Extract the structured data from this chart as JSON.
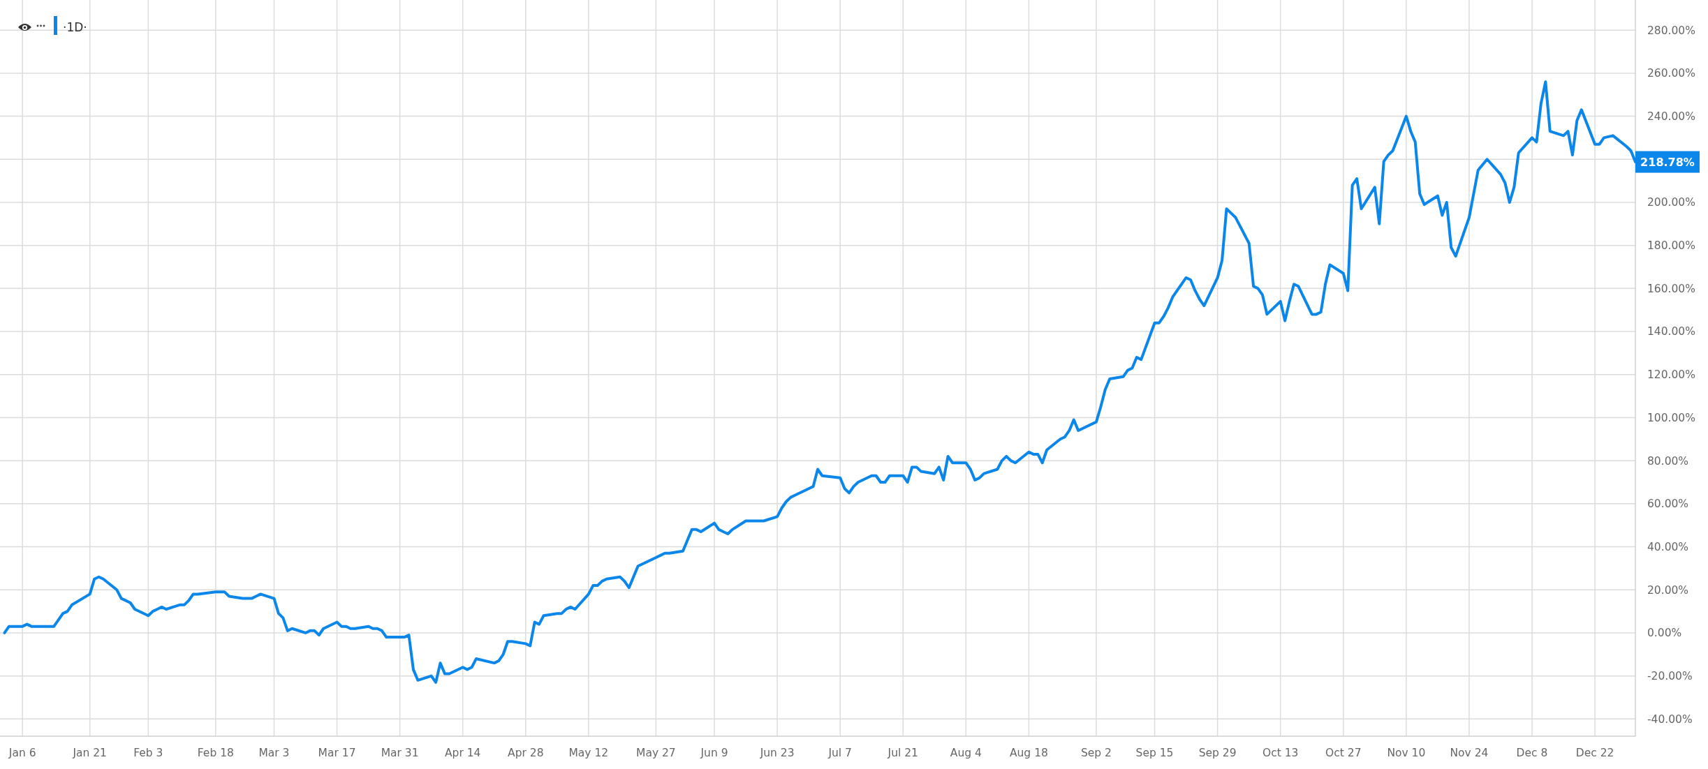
{
  "chart_data": {
    "type": "line",
    "color": "#0b86eb",
    "grid": true,
    "x": [
      "--01-02",
      "--01-03",
      "--01-06",
      "--01-07",
      "--01-08",
      "--01-10",
      "--01-13",
      "--01-14",
      "--01-15",
      "--01-16",
      "--01-17",
      "--01-21",
      "--01-22",
      "--01-23",
      "--01-24",
      "--01-27",
      "--01-28",
      "--01-29",
      "--01-30",
      "--01-31",
      "--02-03",
      "--02-04",
      "--02-05",
      "--02-06",
      "--02-07",
      "--02-10",
      "--02-11",
      "--02-12",
      "--02-13",
      "--02-14",
      "--02-18",
      "--02-19",
      "--02-20",
      "--02-21",
      "--02-24",
      "--02-25",
      "--02-26",
      "--02-27",
      "--02-28",
      "--03-03",
      "--03-04",
      "--03-05",
      "--03-06",
      "--03-07",
      "--03-10",
      "--03-11",
      "--03-12",
      "--03-13",
      "--03-14",
      "--03-17",
      "--03-18",
      "--03-19",
      "--03-20",
      "--03-21",
      "--03-24",
      "--03-25",
      "--03-26",
      "--03-27",
      "--03-28",
      "--03-31",
      "--04-01",
      "--04-02",
      "--04-03",
      "--04-04",
      "--04-07",
      "--04-08",
      "--04-09",
      "--04-10",
      "--04-11",
      "--04-14",
      "--04-15",
      "--04-16",
      "--04-17",
      "--04-21",
      "--04-22",
      "--04-23",
      "--04-24",
      "--04-25",
      "--04-28",
      "--04-29",
      "--04-30",
      "--05-01",
      "--05-02",
      "--05-05",
      "--05-06",
      "--05-07",
      "--05-08",
      "--05-09",
      "--05-12",
      "--05-13",
      "--05-14",
      "--05-15",
      "--05-16",
      "--05-19",
      "--05-20",
      "--05-21",
      "--05-22",
      "--05-23",
      "--05-27",
      "--05-28",
      "--05-29",
      "--05-30",
      "--06-02",
      "--06-03",
      "--06-04",
      "--06-05",
      "--06-06",
      "--06-09",
      "--06-10",
      "--06-11",
      "--06-12",
      "--06-13",
      "--06-16",
      "--06-17",
      "--06-18",
      "--06-20",
      "--06-23",
      "--06-24",
      "--06-25",
      "--06-26",
      "--06-27",
      "--06-30",
      "--07-01",
      "--07-02",
      "--07-03",
      "--07-07",
      "--07-08",
      "--07-09",
      "--07-10",
      "--07-11",
      "--07-14",
      "--07-15",
      "--07-16",
      "--07-17",
      "--07-18",
      "--07-21",
      "--07-22",
      "--07-23",
      "--07-24",
      "--07-25",
      "--07-28",
      "--07-29",
      "--07-30",
      "--07-31",
      "--08-01",
      "--08-04",
      "--08-05",
      "--08-06",
      "--08-07",
      "--08-08",
      "--08-11",
      "--08-12",
      "--08-13",
      "--08-14",
      "--08-15",
      "--08-18",
      "--08-19",
      "--08-20",
      "--08-21",
      "--08-22",
      "--08-25",
      "--08-26",
      "--08-27",
      "--08-28",
      "--08-29",
      "--09-02",
      "--09-03",
      "--09-04",
      "--09-05",
      "--09-08",
      "--09-09",
      "--09-10",
      "--09-11",
      "--09-12",
      "--09-15",
      "--09-16",
      "--09-17",
      "--09-18",
      "--09-19",
      "--09-22",
      "--09-23",
      "--09-24",
      "--09-25",
      "--09-26",
      "--09-29",
      "--09-30",
      "--10-01",
      "--10-02",
      "--10-03",
      "--10-06",
      "--10-07",
      "--10-08",
      "--10-09",
      "--10-10",
      "--10-13",
      "--10-14",
      "--10-15",
      "--10-16",
      "--10-17",
      "--10-20",
      "--10-21",
      "--10-22",
      "--10-23",
      "--10-24",
      "--10-27",
      "--10-28",
      "--10-29",
      "--10-30",
      "--10-31",
      "--11-03",
      "--11-04",
      "--11-05",
      "--11-06",
      "--11-07",
      "--11-10",
      "--11-11",
      "--11-12",
      "--11-13",
      "--11-14",
      "--11-17",
      "--11-18",
      "--11-19",
      "--11-20",
      "--11-21",
      "--11-24",
      "--11-25",
      "--11-26",
      "--11-28",
      "--12-01",
      "--12-02",
      "--12-03",
      "--12-04",
      "--12-05",
      "--12-08",
      "--12-09",
      "--12-10",
      "--12-11",
      "--12-12",
      "--12-15",
      "--12-16",
      "--12-17",
      "--12-18",
      "--12-19",
      "--12-22",
      "--12-23",
      "--12-24",
      "--12-26",
      "--12-29",
      "--12-30",
      "--12-31"
    ],
    "values": [
      0,
      3,
      3,
      4,
      3,
      3,
      3,
      6,
      9,
      10,
      13,
      18,
      25,
      26,
      25,
      20,
      16,
      15,
      14,
      11,
      8,
      10,
      11,
      12,
      11,
      13,
      13,
      15,
      18,
      18,
      19,
      19,
      19,
      17,
      16,
      16,
      16,
      17,
      18,
      16,
      9,
      7,
      1,
      2,
      0,
      1,
      1,
      -1,
      2,
      5,
      3,
      3,
      2,
      2,
      3,
      2,
      2,
      1,
      -2,
      -2,
      -2,
      -1,
      -17,
      -22,
      -20,
      -23,
      -14,
      -19,
      -19,
      -16,
      -17,
      -16,
      -12,
      -14,
      -13,
      -10,
      -4,
      -4,
      -5,
      -6,
      5,
      4,
      8,
      9,
      9,
      11,
      12,
      11,
      18,
      22,
      22,
      24,
      25,
      26,
      24,
      21,
      26,
      31,
      35,
      36,
      37,
      37,
      38,
      43,
      48,
      48,
      47,
      51,
      48,
      47,
      46,
      48,
      52,
      52,
      52,
      52,
      54,
      58,
      61,
      63,
      64,
      67,
      68,
      76,
      73,
      72,
      67,
      65,
      68,
      70,
      73,
      73,
      70,
      70,
      73,
      73,
      70,
      77,
      77,
      75,
      74,
      77,
      71,
      82,
      79,
      79,
      76,
      71,
      72,
      74,
      76,
      80,
      82,
      80,
      79,
      84,
      83,
      83,
      79,
      85,
      90,
      91,
      94,
      99,
      94,
      98,
      105,
      113,
      118,
      119,
      122,
      123,
      128,
      127,
      144,
      144,
      147,
      151,
      156,
      165,
      164,
      159,
      155,
      152,
      165,
      173,
      197,
      195,
      193,
      181,
      161,
      160,
      157,
      148,
      154,
      145,
      154,
      162,
      161,
      148,
      148,
      149,
      162,
      171,
      167,
      159,
      208,
      211,
      197,
      207,
      190,
      219,
      222,
      224,
      240,
      233,
      228,
      204,
      199,
      203,
      194,
      200,
      179,
      175,
      193,
      204,
      215,
      220,
      213,
      209,
      200,
      207,
      223,
      230,
      228,
      246,
      256,
      233,
      231,
      233,
      222,
      238,
      243,
      227,
      227,
      230,
      231,
      226,
      224,
      218.78
    ],
    "xlim": [
      "--01-01",
      "--12-31"
    ],
    "xticks": [
      {
        "value": "--01-06",
        "label": "Jan 6"
      },
      {
        "value": "--01-21",
        "label": "Jan 21"
      },
      {
        "value": "--02-03",
        "label": "Feb 3"
      },
      {
        "value": "--02-18",
        "label": "Feb 18"
      },
      {
        "value": "--03-03",
        "label": "Mar 3"
      },
      {
        "value": "--03-17",
        "label": "Mar 17"
      },
      {
        "value": "--03-31",
        "label": "Mar 31"
      },
      {
        "value": "--04-14",
        "label": "Apr 14"
      },
      {
        "value": "--04-28",
        "label": "Apr 28"
      },
      {
        "value": "--05-12",
        "label": "May 12"
      },
      {
        "value": "--05-27",
        "label": "May 27"
      },
      {
        "value": "--06-09",
        "label": "Jun 9"
      },
      {
        "value": "--06-23",
        "label": "Jun 23"
      },
      {
        "value": "--07-07",
        "label": "Jul 7"
      },
      {
        "value": "--07-21",
        "label": "Jul 21"
      },
      {
        "value": "--08-04",
        "label": "Aug 4"
      },
      {
        "value": "--08-18",
        "label": "Aug 18"
      },
      {
        "value": "--09-02",
        "label": "Sep 2"
      },
      {
        "value": "--09-15",
        "label": "Sep 15"
      },
      {
        "value": "--09-29",
        "label": "Sep 29"
      },
      {
        "value": "--10-13",
        "label": "Oct 13"
      },
      {
        "value": "--10-27",
        "label": "Oct 27"
      },
      {
        "value": "--11-10",
        "label": "Nov 10"
      },
      {
        "value": "--11-24",
        "label": "Nov 24"
      },
      {
        "value": "--12-08",
        "label": "Dec 8"
      },
      {
        "value": "--12-22",
        "label": "Dec 22"
      }
    ],
    "ylim": [
      -48,
      294
    ],
    "yticks": [
      {
        "value": -40,
        "label": "-40.00%"
      },
      {
        "value": -20,
        "label": "-20.00%"
      },
      {
        "value": 0,
        "label": "0.00%"
      },
      {
        "value": 20,
        "label": "20.00%"
      },
      {
        "value": 40,
        "label": "40.00%"
      },
      {
        "value": 60,
        "label": "60.00%"
      },
      {
        "value": 80,
        "label": "80.00%"
      },
      {
        "value": 100,
        "label": "100.00%"
      },
      {
        "value": 120,
        "label": "120.00%"
      },
      {
        "value": 140,
        "label": "140.00%"
      },
      {
        "value": 160,
        "label": "160.00%"
      },
      {
        "value": 180,
        "label": "180.00%"
      },
      {
        "value": 200,
        "label": "200.00%"
      },
      {
        "value": 220,
        "label": null
      },
      {
        "value": 240,
        "label": "240.00%"
      },
      {
        "value": 260,
        "label": "260.00%"
      },
      {
        "value": 280,
        "label": "280.00%"
      }
    ],
    "annotations": [
      "·1D·",
      {
        "text": "218.78%",
        "x": "--12-31",
        "y": 218.78
      }
    ]
  }
}
